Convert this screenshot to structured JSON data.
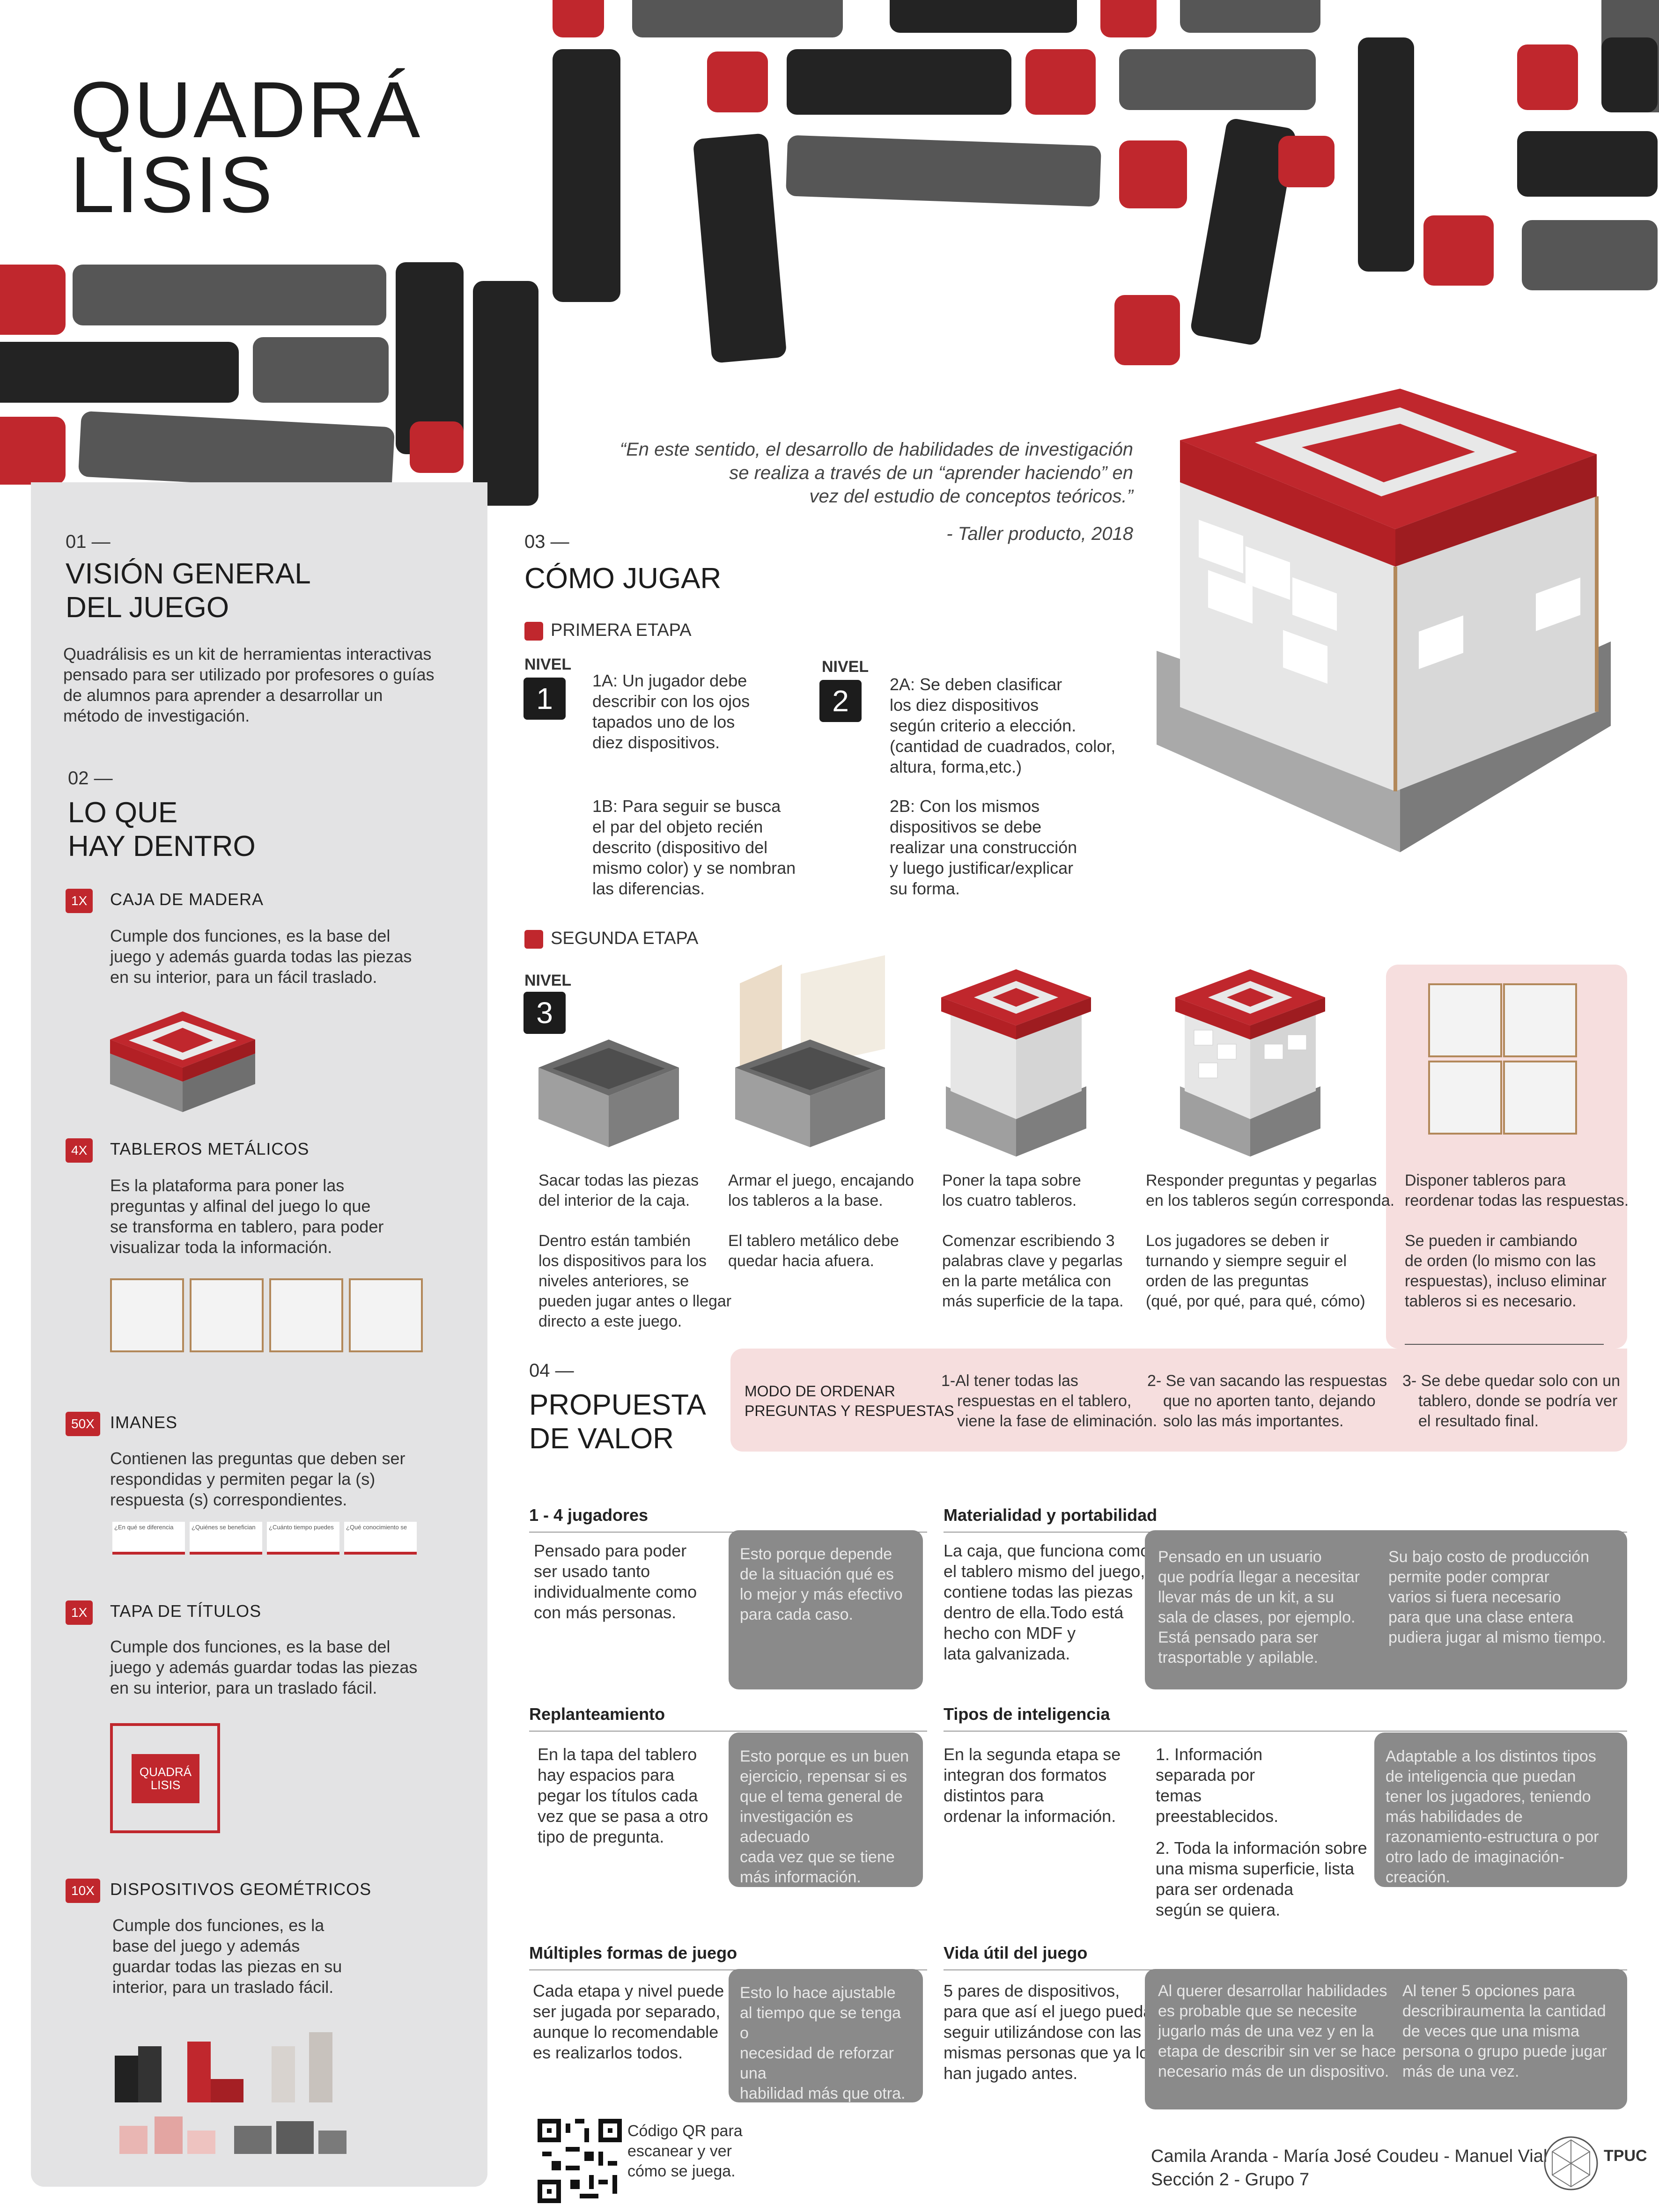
{
  "logo": {
    "line1": "QUADRÁ",
    "line2": "LISIS"
  },
  "quote": {
    "text": "“En este sentido, el desarrollo de habilidades de investigación se realiza a través de un “aprender haciendo” en vez del estudio de conceptos teóricos.”",
    "line1": "“En este sentido, el desarrollo de habilidades de investigación",
    "line2": "se realiza a través de un “aprender haciendo” en",
    "line3": "vez del estudio de conceptos teóricos.”",
    "source": "- Taller producto, 2018"
  },
  "colors": {
    "accent": "#c0272d",
    "dark": "#232323",
    "gray": "#565656",
    "panel": "#e3e3e4"
  },
  "sections": {
    "vision": {
      "num": "01 —",
      "title1": "VISIÓN GENERAL",
      "title2": "DEL JUEGO",
      "body": [
        "Quadrálisis es un kit de herramientas interactivas",
        "pensado para ser utilizado por profesores o guías",
        "de alumnos para aprender a desarrollar un",
        "método de investigación."
      ]
    },
    "contents": {
      "num": "02 —",
      "title1": "LO QUE",
      "title2": "HAY DENTRO",
      "items": [
        {
          "badge": "1X",
          "title": "CAJA DE MADERA",
          "body": [
            "Cumple dos funciones, es la base del",
            "juego y además guarda todas las piezas",
            "en su interior, para un fácil traslado."
          ]
        },
        {
          "badge": "4X",
          "title": "TABLEROS METÁLICOS",
          "body": [
            "Es la plataforma para poner las",
            "preguntas y alfinal del juego lo que",
            "se transforma en tablero, para poder",
            "visualizar toda la información."
          ]
        },
        {
          "badge": "50X",
          "title": "IMANES",
          "body": [
            "Contienen las preguntas que deben ser",
            "respondidas y permiten pegar la (s)",
            "respuesta (s) correspondientes."
          ]
        },
        {
          "badge": "1X",
          "title": "TAPA DE TÍTULOS",
          "body": [
            "Cumple dos funciones, es la base del",
            "juego y además guardar todas las piezas",
            "en su interior, para un traslado fácil."
          ]
        },
        {
          "badge": "10X",
          "title": "DISPOSITIVOS GEOMÉTRICOS",
          "body": [
            "Cumple dos funciones, es la",
            "base del juego y además",
            "guardar todas las piezas en su",
            "interior, para un traslado fácil."
          ]
        }
      ],
      "magnets": [
        "¿En qué se diferencia",
        "¿Quiénes se benefician",
        "¿Cuánto tiempo puedes",
        "¿Qué conocimiento se"
      ]
    },
    "howto": {
      "num": "03 —",
      "title": "CÓMO JUGAR",
      "stage1": "PRIMERA ETAPA",
      "stage2": "SEGUNDA ETAPA",
      "nivel_label": "NIVEL",
      "n1": "1",
      "n2": "2",
      "n3": "3",
      "l1a": [
        "1A: Un jugador debe",
        "describir con los ojos",
        "tapados uno de los",
        "diez dispositivos."
      ],
      "l1b": [
        "1B: Para seguir se busca",
        "el par del objeto recién",
        "descrito (dispositivo del",
        "mismo color) y se nombran",
        "las diferencias."
      ],
      "l2a": [
        "2A: Se deben clasificar",
        "los diez dispositivos",
        "según criterio a elección.",
        "(cantidad de cuadrados, color,",
        "altura, forma,etc.)"
      ],
      "l2b": [
        "2B: Con los mismos",
        "dispositivos se debe",
        "realizar una construcción",
        "y luego justificar/explicar",
        "su forma."
      ],
      "steps": [
        {
          "a": [
            "Sacar todas las piezas",
            "del interior de la caja."
          ],
          "b": [
            "Dentro están también",
            "los dispositivos para los",
            "niveles anteriores, se",
            "pueden jugar antes o llegar",
            "directo a este juego."
          ]
        },
        {
          "a": [
            "Armar el juego, encajando",
            "los tableros a la base."
          ],
          "b": [
            "El tablero metálico debe",
            "quedar hacia afuera."
          ]
        },
        {
          "a": [
            "Poner la tapa sobre",
            "los cuatro tableros."
          ],
          "b": [
            "Comenzar escribiendo 3",
            "palabras clave y pegarlas",
            "en la parte metálica con",
            "más superficie de la tapa."
          ]
        },
        {
          "a": [
            "Responder preguntas y pegarlas",
            "en los tableros según corresponda."
          ],
          "b": [
            "Los jugadores se deben ir",
            "turnando y siempre seguir el",
            "orden de las preguntas",
            "(qué, por qué, para qué, cómo)"
          ]
        },
        {
          "a": [
            "Disponer tableros para",
            "reordenar todas las respuestas."
          ],
          "b": [
            "Se pueden ir cambiando",
            "de orden (lo mismo con las",
            "respuestas), incluso eliminar",
            "tableros si es necesario."
          ]
        }
      ],
      "modo": {
        "title": [
          "MODO DE ORDENAR",
          "PREGUNTAS Y RESPUESTAS"
        ],
        "s1": [
          "1-Al tener todas las",
          "respuestas en el tablero,",
          "viene la fase de eliminación."
        ],
        "s2": [
          "2- Se van sacando las respuestas",
          "que no aporten tanto, dejando",
          "solo las más importantes."
        ],
        "s3": [
          "3- Se debe quedar solo con un",
          "tablero, donde se podría ver",
          "el resultado final."
        ]
      }
    },
    "value": {
      "num": "04 —",
      "title1": "PROPUESTA",
      "title2": "DE VALOR",
      "blocks": [
        {
          "head": "1 - 4 jugadores",
          "text": [
            "Pensado para poder",
            "ser usado tanto",
            "individualmente como",
            "con más personas."
          ],
          "card": [
            "Esto porque depende",
            "de la situación qué es",
            "lo mejor y más efectivo",
            "para cada caso."
          ]
        },
        {
          "head": "Materialidad y portabilidad",
          "text": [
            "La caja, que funciona como",
            "el tablero mismo del juego,",
            "contiene todas las piezas",
            "dentro de ella.Todo está",
            "hecho con MDF y",
            "lata galvanizada."
          ],
          "card": [
            "Pensado en un usuario",
            "que podría llegar a necesitar",
            "llevar más de un kit, a su",
            "sala de clases, por ejemplo.",
            "Está pensado para ser",
            "trasportable y apilable."
          ],
          "card2": [
            "Su bajo costo de producción",
            "permite poder comprar",
            "varios si fuera necesario",
            "para que una clase entera",
            "pudiera jugar al mismo tiempo."
          ]
        },
        {
          "head": "Replanteamiento",
          "text": [
            "En la tapa del tablero",
            "hay espacios para",
            "pegar los títulos cada",
            "vez que se pasa a otro",
            "tipo de pregunta."
          ],
          "card": [
            "Esto porque es un buen",
            "ejercicio, repensar si es",
            "que el tema general de",
            "investigación es adecuado",
            "cada vez que se tiene",
            "más información."
          ]
        },
        {
          "head": "Tipos de inteligencia",
          "text": [
            "En la segunda etapa se",
            "integran dos formatos",
            "distintos para",
            "ordenar la información."
          ],
          "list": [
            "1. Información",
            "separada por",
            "temas",
            "preestablecidos."
          ],
          "list2": [
            "2. Toda la información sobre",
            "una misma superficie, lista",
            "para ser ordenada",
            "según se quiera."
          ],
          "card": [
            "Adaptable a los distintos tipos",
            "de inteligencia que puedan",
            "tener los jugadores, teniendo",
            "más habilidades de",
            "razonamiento-estructura o por",
            "otro lado de imaginación-creación."
          ]
        },
        {
          "head": "Múltiples formas de juego",
          "text": [
            "Cada etapa y nivel puede",
            "ser jugada por separado,",
            "aunque lo recomendable",
            "es realizarlos todos."
          ],
          "card": [
            "Esto lo hace ajustable",
            "al tiempo que se tenga o",
            "necesidad de reforzar una",
            "habilidad más que otra."
          ]
        },
        {
          "head": "Vida útil del juego",
          "text": [
            "5 pares de dispositivos,",
            "para que así el juego pueda",
            "seguir utilizándose con las",
            "mismas personas que ya lo",
            "han jugado antes."
          ],
          "card": [
            "Al querer desarrollar habilidades",
            "es probable que se necesite",
            "jugarlo más de una vez y en la",
            "etapa de describir sin ver se hace",
            "necesario más de un dispositivo."
          ],
          "card2": [
            "Al tener 5 opciones para",
            "describiraumenta la cantidad",
            "de veces que una misma",
            "persona o grupo puede jugar",
            "más de una vez."
          ]
        }
      ]
    }
  },
  "footer": {
    "qr": [
      "Código QR para",
      "escanear y ver",
      "cómo se juega."
    ],
    "authors": "Camila Aranda - María José Coudeu - Manuel Vial",
    "group": "Sección 2 - Grupo 7",
    "brand": "TPUC"
  }
}
